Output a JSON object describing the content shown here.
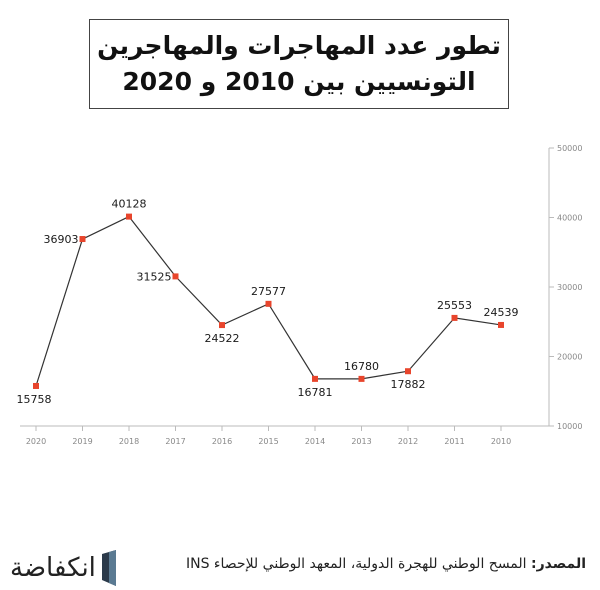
{
  "title": {
    "line1": "تطور عدد المهاجرات والمهاجرين",
    "line2": "التونسيين بين 2010 و 2020"
  },
  "footer": {
    "source_label": "المصدر:",
    "source_text": "المسح الوطني للهجرة الدولية، المعهد الوطني للإحصاء INS",
    "logo_text": "انكفاضة",
    "logo_icon": "inkyfada-logo-icon"
  },
  "chart_data": {
    "type": "line",
    "title": "تطور عدد المهاجرات والمهاجرين التونسيين بين 2010 و 2020",
    "categories": [
      "2020",
      "2019",
      "2018",
      "2017",
      "2016",
      "2015",
      "2014",
      "2013",
      "2012",
      "2011",
      "2010"
    ],
    "values": [
      15758,
      36903,
      40128,
      31525,
      24522,
      27577,
      16781,
      16780,
      17882,
      25553,
      24539
    ],
    "ylim": [
      10000,
      50000
    ],
    "yticks": [
      "10000",
      "20000",
      "30000",
      "40000",
      "50000"
    ],
    "y_axis_side": "right",
    "grid": false,
    "line_color": "#333333",
    "marker_color": "#e8452c",
    "label_color": "#1a1a1a"
  }
}
